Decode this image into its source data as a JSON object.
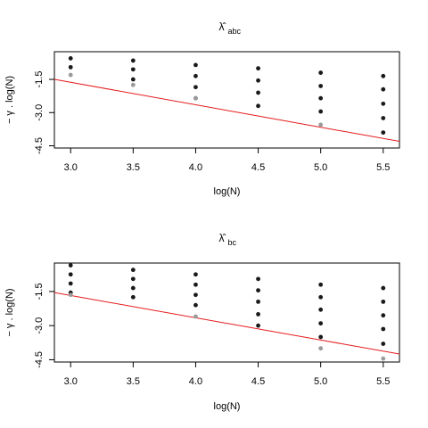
{
  "chart_data": [
    {
      "type": "scatter",
      "title_symbol": "λ̂",
      "title_subscript": "abc",
      "xlabel": "log(N)",
      "ylabel": "− γ . log(N)",
      "xlim": [
        2.87,
        5.63
      ],
      "ylim": [
        -4.6,
        -0.25
      ],
      "xticks": [
        3.0,
        3.5,
        4.0,
        4.5,
        5.0,
        5.5
      ],
      "xtick_labels": [
        "3.0",
        "3.5",
        "4.0",
        "4.5",
        "5.0",
        "5.5"
      ],
      "yticks": [
        -1.5,
        -3.0,
        -4.5
      ],
      "ytick_labels": [
        "-1.5",
        "-3.0",
        "-4.5"
      ],
      "dark_color": "#1a1a1a",
      "gray_color": "#9a9a9a",
      "line_color": "#e41a1c",
      "dark_points": [
        {
          "x": 3.0,
          "y": -0.55
        },
        {
          "x": 3.0,
          "y": -0.95
        },
        {
          "x": 3.5,
          "y": -0.65
        },
        {
          "x": 3.5,
          "y": -1.05
        },
        {
          "x": 3.5,
          "y": -1.5
        },
        {
          "x": 4.0,
          "y": -0.85
        },
        {
          "x": 4.0,
          "y": -1.35
        },
        {
          "x": 4.0,
          "y": -1.85
        },
        {
          "x": 4.0,
          "y": -2.35
        },
        {
          "x": 4.5,
          "y": -1.0
        },
        {
          "x": 4.5,
          "y": -1.55
        },
        {
          "x": 4.5,
          "y": -2.1
        },
        {
          "x": 4.5,
          "y": -2.7
        },
        {
          "x": 5.0,
          "y": -1.2
        },
        {
          "x": 5.0,
          "y": -1.8
        },
        {
          "x": 5.0,
          "y": -2.35
        },
        {
          "x": 5.0,
          "y": -2.95
        },
        {
          "x": 5.5,
          "y": -1.35
        },
        {
          "x": 5.5,
          "y": -1.95
        },
        {
          "x": 5.5,
          "y": -2.6
        },
        {
          "x": 5.5,
          "y": -3.25
        },
        {
          "x": 5.5,
          "y": -3.9
        }
      ],
      "gray_points": [
        {
          "x": 3.0,
          "y": -1.3
        },
        {
          "x": 3.5,
          "y": -1.75
        },
        {
          "x": 4.0,
          "y": -2.35
        },
        {
          "x": 5.0,
          "y": -3.55
        }
      ],
      "line": {
        "x": [
          2.87,
          5.63
        ],
        "y": [
          -1.5,
          -4.3
        ]
      }
    },
    {
      "type": "scatter",
      "title_symbol": "λ̂",
      "title_subscript": "bc",
      "xlabel": "log(N)",
      "ylabel": "− γ . log(N)",
      "xlim": [
        2.87,
        5.63
      ],
      "ylim": [
        -4.6,
        -0.25
      ],
      "xticks": [
        3.0,
        3.5,
        4.0,
        4.5,
        5.0,
        5.5
      ],
      "xtick_labels": [
        "3.0",
        "3.5",
        "4.0",
        "4.5",
        "5.0",
        "5.5"
      ],
      "yticks": [
        -1.5,
        -3.0,
        -4.5
      ],
      "ytick_labels": [
        "-1.5",
        "-3.0",
        "-4.5"
      ],
      "dark_color": "#1a1a1a",
      "gray_color": "#9a9a9a",
      "line_color": "#e41a1c",
      "dark_points": [
        {
          "x": 3.0,
          "y": -0.35
        },
        {
          "x": 3.0,
          "y": -0.75
        },
        {
          "x": 3.0,
          "y": -1.15
        },
        {
          "x": 3.0,
          "y": -1.55
        },
        {
          "x": 3.5,
          "y": -0.55
        },
        {
          "x": 3.5,
          "y": -0.95
        },
        {
          "x": 3.5,
          "y": -1.35
        },
        {
          "x": 3.5,
          "y": -1.75
        },
        {
          "x": 4.0,
          "y": -0.75
        },
        {
          "x": 4.0,
          "y": -1.2
        },
        {
          "x": 4.0,
          "y": -1.65
        },
        {
          "x": 4.0,
          "y": -2.1
        },
        {
          "x": 4.5,
          "y": -0.95
        },
        {
          "x": 4.5,
          "y": -1.45
        },
        {
          "x": 4.5,
          "y": -1.95
        },
        {
          "x": 4.5,
          "y": -2.5
        },
        {
          "x": 4.5,
          "y": -3.0
        },
        {
          "x": 5.0,
          "y": -1.2
        },
        {
          "x": 5.0,
          "y": -1.75
        },
        {
          "x": 5.0,
          "y": -2.3
        },
        {
          "x": 5.0,
          "y": -2.9
        },
        {
          "x": 5.0,
          "y": -3.5
        },
        {
          "x": 5.5,
          "y": -1.35
        },
        {
          "x": 5.5,
          "y": -1.95
        },
        {
          "x": 5.5,
          "y": -2.55
        },
        {
          "x": 5.5,
          "y": -3.15
        },
        {
          "x": 5.5,
          "y": -3.8
        }
      ],
      "gray_points": [
        {
          "x": 3.0,
          "y": -1.65
        },
        {
          "x": 4.0,
          "y": -2.6
        },
        {
          "x": 5.0,
          "y": -4.0
        },
        {
          "x": 5.5,
          "y": -4.45
        }
      ],
      "line": {
        "x": [
          2.87,
          5.63
        ],
        "y": [
          -1.55,
          -4.25
        ]
      }
    }
  ]
}
